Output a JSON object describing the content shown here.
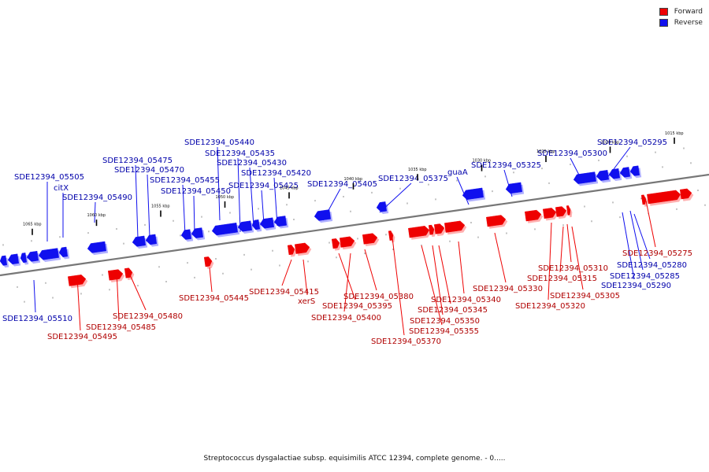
{
  "legend": {
    "forward": {
      "label": "Forward",
      "color": "#ee0000"
    },
    "reverse": {
      "label": "Reverse",
      "color": "#1010ee"
    }
  },
  "caption": "Streptococcus dysgalactiae subsp. equisimilis ATCC 12394, complete genome. - 0.....",
  "rulers": [
    {
      "kbp": 1065,
      "label": "1065 kbp"
    },
    {
      "kbp": 1060,
      "label": "1060 kbp"
    },
    {
      "kbp": 1055,
      "label": "1055 kbp"
    },
    {
      "kbp": 1050,
      "label": "1050 kbp"
    },
    {
      "kbp": 1045,
      "label": "1045 kbp"
    },
    {
      "kbp": 1040,
      "label": "1040 kbp"
    },
    {
      "kbp": 1035,
      "label": "1035 kbp"
    },
    {
      "kbp": 1030,
      "label": "1030 kbp"
    },
    {
      "kbp": 1025,
      "label": "1025 kbp"
    },
    {
      "kbp": 1020,
      "label": "1020 kbp"
    },
    {
      "kbp": 1015,
      "label": "1015 kbp"
    }
  ],
  "genes": [
    {
      "label": "SDE12394_05505",
      "strand": "reverse"
    },
    {
      "label": "citX",
      "strand": "reverse"
    },
    {
      "label": "SDE12394_05490",
      "strand": "reverse"
    },
    {
      "label": "SDE12394_05475",
      "strand": "reverse"
    },
    {
      "label": "SDE12394_05470",
      "strand": "reverse"
    },
    {
      "label": "SDE12394_05455",
      "strand": "reverse"
    },
    {
      "label": "SDE12394_05450",
      "strand": "reverse"
    },
    {
      "label": "SDE12394_05440",
      "strand": "reverse"
    },
    {
      "label": "SDE12394_05435",
      "strand": "reverse"
    },
    {
      "label": "SDE12394_05430",
      "strand": "reverse"
    },
    {
      "label": "SDE12394_05425",
      "strand": "reverse"
    },
    {
      "label": "SDE12394_05420",
      "strand": "reverse"
    },
    {
      "label": "SDE12394_05405",
      "strand": "reverse"
    },
    {
      "label": "SDE12394_05375",
      "strand": "reverse"
    },
    {
      "label": "guaA",
      "strand": "reverse"
    },
    {
      "label": "SDE12394_05325",
      "strand": "reverse"
    },
    {
      "label": "SDE12394_05300",
      "strand": "reverse"
    },
    {
      "label": "SDE12394_05295",
      "strand": "reverse"
    },
    {
      "label": "SDE12394_05510",
      "strand": "reverse"
    },
    {
      "label": "SDE12394_05280",
      "strand": "reverse"
    },
    {
      "label": "SDE12394_05285",
      "strand": "reverse"
    },
    {
      "label": "SDE12394_05290",
      "strand": "reverse"
    },
    {
      "label": "SDE12394_05495",
      "strand": "forward"
    },
    {
      "label": "SDE12394_05485",
      "strand": "forward"
    },
    {
      "label": "SDE12394_05480",
      "strand": "forward"
    },
    {
      "label": "SDE12394_05445",
      "strand": "forward"
    },
    {
      "label": "SDE12394_05415",
      "strand": "forward"
    },
    {
      "label": "xerS",
      "strand": "forward"
    },
    {
      "label": "SDE12394_05395",
      "strand": "forward"
    },
    {
      "label": "SDE12394_05400",
      "strand": "forward"
    },
    {
      "label": "SDE12394_05380",
      "strand": "forward"
    },
    {
      "label": "SDE12394_05370",
      "strand": "forward"
    },
    {
      "label": "SDE12394_05355",
      "strand": "forward"
    },
    {
      "label": "SDE12394_05350",
      "strand": "forward"
    },
    {
      "label": "SDE12394_05345",
      "strand": "forward"
    },
    {
      "label": "SDE12394_05340",
      "strand": "forward"
    },
    {
      "label": "SDE12394_05330",
      "strand": "forward"
    },
    {
      "label": "SDE12394_05320",
      "strand": "forward"
    },
    {
      "label": "SDE12394_05315",
      "strand": "forward"
    },
    {
      "label": "SDE12394_05310",
      "strand": "forward"
    },
    {
      "label": "SDE12394_05305",
      "strand": "forward"
    },
    {
      "label": "SDE12394_05275",
      "strand": "forward"
    }
  ]
}
